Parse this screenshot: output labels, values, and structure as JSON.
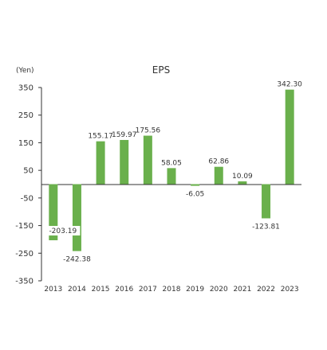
{
  "chart_data": {
    "type": "bar",
    "title": "EPS",
    "ylabel": "(Yen)",
    "xlabel": "",
    "categories": [
      "2013",
      "2014",
      "2015",
      "2016",
      "2017",
      "2018",
      "2019",
      "2020",
      "2021",
      "2022",
      "2023"
    ],
    "values": [
      -203.19,
      -242.38,
      155.17,
      159.97,
      175.56,
      58.05,
      -6.05,
      62.86,
      10.09,
      -123.81,
      342.3
    ],
    "value_labels": [
      "-203.19",
      "-242.38",
      "155.17",
      "159.97",
      "175.56",
      "58.05",
      "-6.05",
      "62.86",
      "10.09",
      "-123.81",
      "342.30"
    ],
    "ylim": [
      -350,
      350
    ],
    "yticks": [
      350,
      250,
      150,
      50,
      -50,
      -150,
      -250,
      -350
    ],
    "ytick_labels": [
      "350",
      "250",
      "150",
      "50",
      "-50",
      "-150",
      "-250",
      "-350"
    ],
    "bar_color": "#6ab04c",
    "axis_color": "#333333",
    "grid": false
  }
}
